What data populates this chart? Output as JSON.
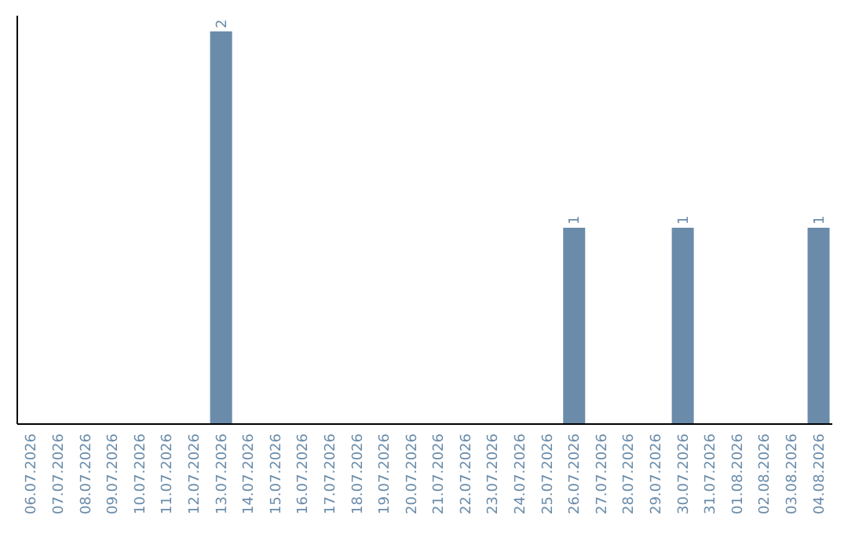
{
  "chart_data": {
    "type": "bar",
    "categories": [
      "06.07.2026",
      "07.07.2026",
      "08.07.2026",
      "09.07.2026",
      "10.07.2026",
      "11.07.2026",
      "12.07.2026",
      "13.07.2026",
      "14.07.2026",
      "15.07.2026",
      "16.07.2026",
      "17.07.2026",
      "18.07.2026",
      "19.07.2026",
      "20.07.2026",
      "21.07.2026",
      "22.07.2026",
      "23.07.2026",
      "24.07.2026",
      "25.07.2026",
      "26.07.2026",
      "27.07.2026",
      "28.07.2026",
      "29.07.2026",
      "30.07.2026",
      "31.07.2026",
      "01.08.2026",
      "02.08.2026",
      "03.08.2026",
      "04.08.2026"
    ],
    "values": [
      0,
      0,
      0,
      0,
      0,
      0,
      0,
      2,
      0,
      0,
      0,
      0,
      0,
      0,
      0,
      0,
      0,
      0,
      0,
      0,
      1,
      0,
      0,
      0,
      1,
      0,
      0,
      0,
      0,
      1
    ],
    "value_labels": [
      null,
      null,
      null,
      null,
      null,
      null,
      null,
      "2",
      null,
      null,
      null,
      null,
      null,
      null,
      null,
      null,
      null,
      null,
      null,
      null,
      "1",
      null,
      null,
      null,
      "1",
      null,
      null,
      null,
      null,
      "1"
    ],
    "color": "#6a8caa"
  }
}
